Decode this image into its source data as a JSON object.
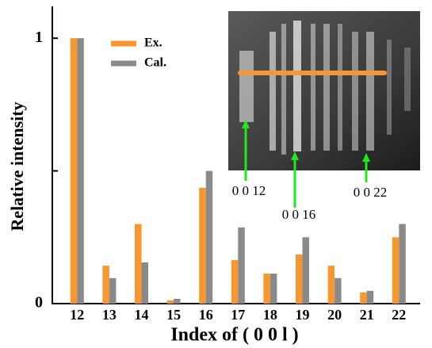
{
  "chart_data": {
    "type": "bar",
    "x_label": "Index of ( 0 0 l )",
    "y_label": "Relative intensity",
    "categories": [
      "12",
      "13",
      "14",
      "15",
      "16",
      "17",
      "18",
      "19",
      "20",
      "21",
      "22"
    ],
    "series": [
      {
        "name": "Ex.",
        "color": "#f7972f",
        "values": [
          1,
          0.143,
          0.3,
          0.012,
          0.436,
          0.164,
          0.113,
          0.185,
          0.143,
          0.042,
          0.25
        ]
      },
      {
        "name": "Cal.",
        "color": "#8a8a8a",
        "values": [
          1,
          0.096,
          0.155,
          0.018,
          0.5,
          0.287,
          0.113,
          0.25,
          0.096,
          0.048,
          0.3
        ]
      }
    ],
    "ylim": [
      0,
      1.12
    ],
    "yticks": [
      0,
      {
        "value": 0.5,
        "label": null
      },
      1
    ],
    "legend": "upper-left",
    "annotations": [
      "0 0 12",
      "0 0 16",
      "0 0 22"
    ]
  }
}
